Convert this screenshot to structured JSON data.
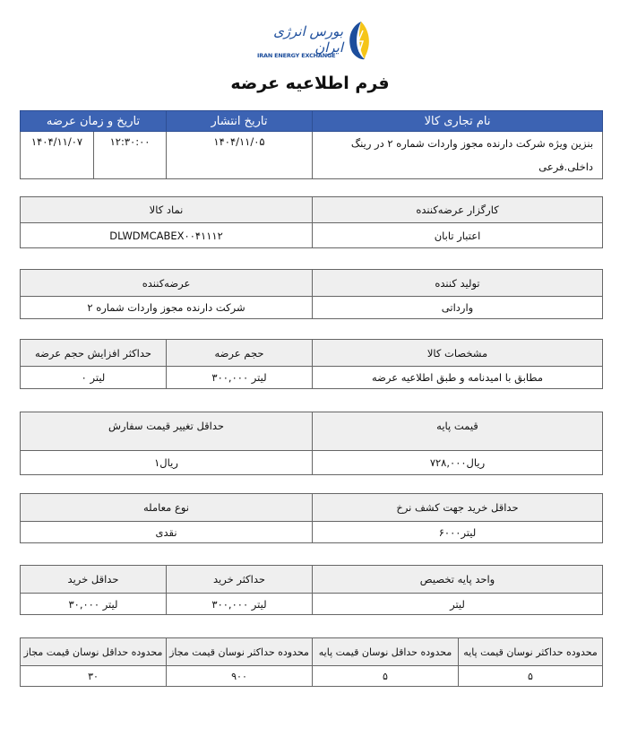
{
  "logo": {
    "text_fa": "بورس انرژی ایران",
    "text_en": "IRAN ENERGY EXCHANGE",
    "colors": {
      "blue": "#1d4e9c",
      "yellow": "#f5c518"
    }
  },
  "title": "فرم اطلاعیه عرضه",
  "colors": {
    "header_blue": "#3c63b3",
    "header_gray": "#efefef"
  },
  "t1": {
    "headers": [
      "نام تجاری کالا",
      "تاریخ انتشار",
      "تاریخ و زمان عرضه"
    ],
    "values": {
      "name": "بنزین ویژه شرکت دارنده مجوز واردات شماره ۲ در رینگ داخلی.فرعی",
      "publish_date": "۱۴۰۴/۱۱/۰۵",
      "offer_time": "۱۲:۳۰:۰۰",
      "offer_date": "۱۴۰۴/۱۱/۰۷"
    }
  },
  "t2": {
    "headers": [
      "کارگزار عرضه‌کننده",
      "نماد کالا"
    ],
    "values": [
      "اعتبار تابان",
      "DLWDMCABEX۰۰۴۱۱۱۲"
    ]
  },
  "t3": {
    "headers": [
      "تولید کننده",
      "عرضه‌کننده"
    ],
    "values": [
      "وارداتی",
      "شرکت دارنده مجوز واردات شماره ۲"
    ]
  },
  "t4": {
    "headers": [
      "مشخصات کالا",
      "حجم عرضه",
      "حداکثر افزایش حجم عرضه"
    ],
    "values": [
      "مطابق با امیدنامه و طبق اطلاعیه عرضه",
      "لیتر ۳۰۰,۰۰۰",
      "لیتر ۰"
    ]
  },
  "t5": {
    "headers": [
      "قیمت پایه",
      "حداقل تغییر قیمت سفارش"
    ],
    "values": [
      "ریال۷۲۸,۰۰۰",
      "ریال۱"
    ]
  },
  "t6": {
    "headers": [
      "حداقل خرید جهت کشف نرخ",
      "نوع معامله"
    ],
    "values": [
      "لیتر۶۰۰۰",
      "نقدی"
    ]
  },
  "t7": {
    "headers": [
      "واحد پایه تخصیص",
      "حداکثر خرید",
      "حداقل خرید"
    ],
    "values": [
      "لیتر",
      "لیتر ۳۰۰,۰۰۰",
      "لیتر ۳۰,۰۰۰"
    ]
  },
  "t8": {
    "headers": [
      "محدوده حداکثر نوسان قیمت پایه",
      "محدوده حداقل نوسان قیمت پایه",
      "محدوده حداکثر نوسان قیمت مجاز",
      "محدوده حداقل نوسان قیمت مجاز"
    ],
    "values": [
      "۵",
      "۵",
      "۹۰۰",
      "۳۰"
    ]
  }
}
